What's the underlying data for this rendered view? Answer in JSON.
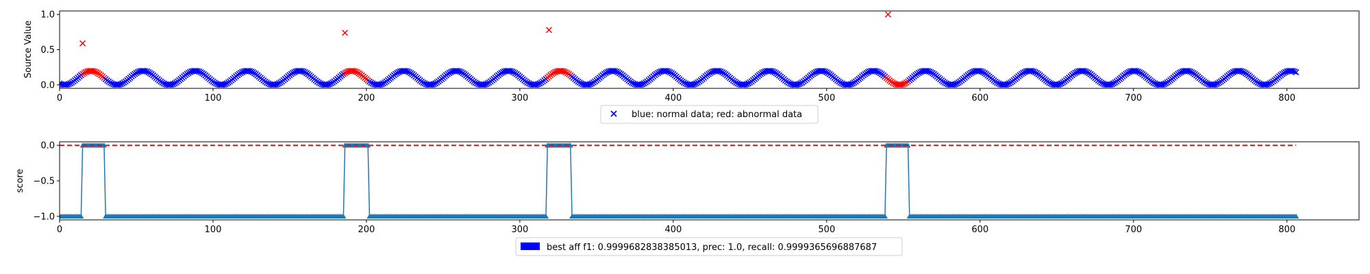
{
  "chart_data": [
    {
      "type": "scatter",
      "title": "",
      "xlabel": "",
      "ylabel": "Source Value",
      "xlim": [
        0,
        847
      ],
      "ylim": [
        -0.05,
        1.05
      ],
      "xticks": [
        0,
        100,
        200,
        300,
        400,
        500,
        600,
        700,
        800
      ],
      "yticks": [
        0.0,
        0.5,
        1.0
      ],
      "ytick_labels": [
        "0.0",
        "0.5",
        "1.0"
      ],
      "marker": "x",
      "series": [
        {
          "name": "normal",
          "color": "#0000ff",
          "sine": {
            "x_start": 0,
            "x_end": 806,
            "step": 1,
            "center": 0.1,
            "amplitude": 0.1,
            "period": 34,
            "phase": -2.2
          }
        },
        {
          "name": "abnormal",
          "color": "#ff0000",
          "sine_ranges": [
            [
              15,
              29
            ],
            [
              186,
              201
            ],
            [
              318,
              333
            ],
            [
              539,
              553
            ]
          ],
          "spikes": [
            [
              15,
              0.59
            ],
            [
              186,
              0.74
            ],
            [
              319,
              0.78
            ],
            [
              540,
              1.0
            ]
          ]
        }
      ],
      "legend": {
        "position": "bottom-center",
        "text": "blue: normal data; red: abnormal data"
      }
    },
    {
      "type": "line",
      "title": "",
      "xlabel": "",
      "ylabel": "score",
      "xlim": [
        0,
        847
      ],
      "ylim": [
        -1.05,
        0.05
      ],
      "xticks": [
        0,
        100,
        200,
        300,
        400,
        500,
        600,
        700,
        800
      ],
      "yticks": [
        0.0,
        -0.5,
        -1.0
      ],
      "ytick_labels": [
        "0.0",
        "−0.5",
        "−1.0"
      ],
      "score": {
        "x_start": 0,
        "x_end": 806,
        "baseline": -1.0,
        "high": 0.0,
        "high_ranges": [
          [
            15,
            29
          ],
          [
            186,
            201
          ],
          [
            318,
            333
          ],
          [
            539,
            553
          ]
        ]
      },
      "line_color": "#1f77b4",
      "threshold": {
        "y": 0.0,
        "x_end": 806,
        "color": "#ff0000",
        "style": "dashed"
      },
      "legend": {
        "position": "bottom-center",
        "text": "best aff f1: 0.9999682838385013, prec: 1.0, recall: 0.9999365696887687",
        "color": "#0000ff"
      }
    }
  ]
}
